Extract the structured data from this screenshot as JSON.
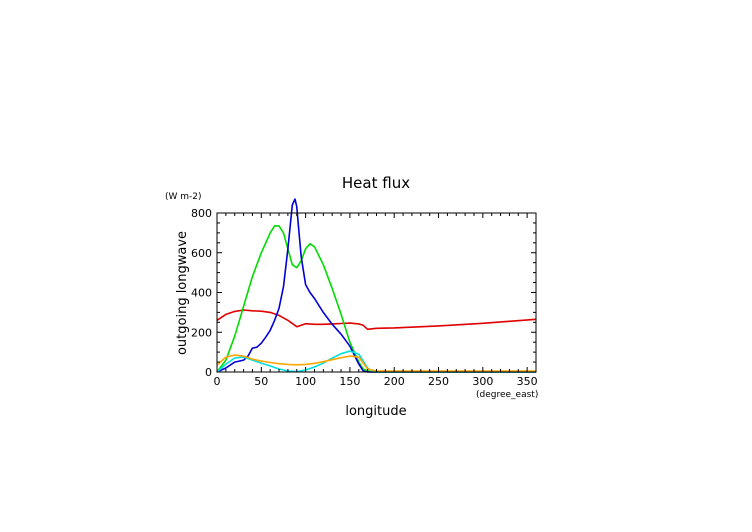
{
  "chart_data": {
    "type": "line",
    "title": "Heat flux",
    "xlabel": "longitude",
    "ylabel": "outgoing longwave",
    "xunit": "(degree_east)",
    "yunit": "(W m-2)",
    "xlim": [
      0,
      360
    ],
    "ylim": [
      0,
      800
    ],
    "xticks": [
      0,
      50,
      100,
      150,
      200,
      250,
      300,
      350
    ],
    "yticks": [
      0,
      200,
      400,
      600,
      800
    ],
    "grid": false,
    "series": [
      {
        "color": "#e00000",
        "x": [
          0,
          10,
          20,
          30,
          40,
          50,
          60,
          70,
          80,
          90,
          100,
          110,
          120,
          130,
          140,
          150,
          160,
          165,
          170,
          180,
          200,
          250,
          300,
          330,
          360
        ],
        "y": [
          260,
          290,
          305,
          312,
          308,
          306,
          300,
          285,
          260,
          228,
          243,
          240,
          240,
          242,
          244,
          246,
          242,
          235,
          215,
          220,
          222,
          232,
          245,
          255,
          265
        ]
      },
      {
        "color": "#00dc00",
        "x": [
          0,
          10,
          20,
          30,
          40,
          50,
          60,
          65,
          70,
          75,
          80,
          85,
          90,
          95,
          100,
          105,
          110,
          120,
          130,
          140,
          150,
          160,
          165,
          170,
          175,
          180,
          200,
          300,
          360
        ],
        "y": [
          0,
          60,
          180,
          330,
          480,
          600,
          700,
          735,
          735,
          700,
          620,
          540,
          525,
          560,
          620,
          645,
          630,
          540,
          420,
          290,
          150,
          50,
          15,
          5,
          0,
          0,
          0,
          0,
          0
        ]
      },
      {
        "color": "#0000d8",
        "x": [
          0,
          10,
          20,
          30,
          35,
          40,
          45,
          50,
          55,
          60,
          65,
          70,
          75,
          80,
          85,
          88,
          90,
          92,
          95,
          100,
          105,
          110,
          120,
          130,
          140,
          150,
          160,
          165,
          170,
          180,
          250,
          360
        ],
        "y": [
          0,
          20,
          50,
          60,
          80,
          120,
          125,
          145,
          175,
          210,
          260,
          320,
          430,
          620,
          840,
          870,
          830,
          730,
          580,
          440,
          400,
          370,
          300,
          240,
          190,
          130,
          40,
          5,
          0,
          0,
          0,
          0
        ]
      },
      {
        "color": "#00e0e0",
        "x": [
          0,
          10,
          20,
          30,
          40,
          50,
          60,
          70,
          80,
          90,
          100,
          110,
          120,
          130,
          140,
          150,
          160,
          165,
          170,
          175,
          180,
          250,
          360
        ],
        "y": [
          0,
          40,
          70,
          75,
          60,
          45,
          30,
          15,
          5,
          2,
          10,
          25,
          45,
          70,
          92,
          105,
          90,
          55,
          20,
          5,
          0,
          0,
          0
        ]
      },
      {
        "color": "#ffa500",
        "x": [
          0,
          10,
          20,
          30,
          40,
          50,
          60,
          70,
          80,
          90,
          100,
          110,
          120,
          130,
          140,
          150,
          160,
          165,
          170,
          180,
          250,
          360
        ],
        "y": [
          35,
          75,
          85,
          80,
          65,
          55,
          48,
          42,
          38,
          36,
          38,
          44,
          52,
          62,
          72,
          80,
          75,
          45,
          15,
          5,
          5,
          5
        ]
      }
    ]
  }
}
